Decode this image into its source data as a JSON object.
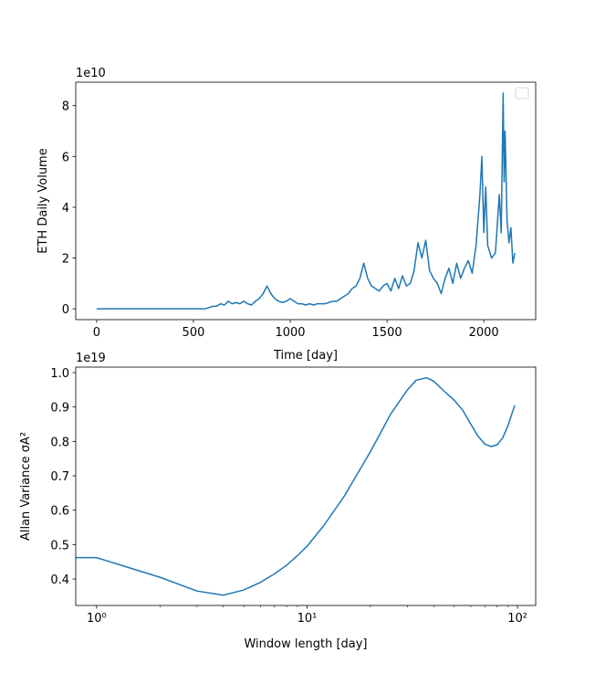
{
  "chart_data": [
    {
      "type": "line",
      "xlabel": "Time [day]",
      "ylabel": "ETH Daily Volume",
      "offset_text": "1e10",
      "xlim": [
        -108,
        2268
      ],
      "xticks": [
        0,
        500,
        1000,
        1500,
        2000
      ],
      "ylim": [
        -0.425,
        8.925
      ],
      "yticks": [
        0,
        2,
        4,
        6,
        8
      ],
      "legend": "upper right",
      "series": [
        {
          "color": "#1f77b4",
          "x": [
            0,
            100,
            200,
            300,
            400,
            500,
            560,
            580,
            600,
            620,
            640,
            660,
            680,
            700,
            720,
            740,
            760,
            780,
            800,
            820,
            840,
            860,
            880,
            900,
            920,
            940,
            960,
            980,
            1000,
            1020,
            1040,
            1060,
            1080,
            1100,
            1120,
            1140,
            1160,
            1180,
            1200,
            1220,
            1240,
            1260,
            1280,
            1300,
            1320,
            1340,
            1360,
            1380,
            1400,
            1420,
            1440,
            1460,
            1480,
            1500,
            1520,
            1540,
            1560,
            1580,
            1600,
            1620,
            1640,
            1660,
            1680,
            1700,
            1720,
            1740,
            1760,
            1780,
            1800,
            1820,
            1840,
            1860,
            1880,
            1900,
            1920,
            1940,
            1960,
            1980,
            1990,
            2000,
            2010,
            2020,
            2040,
            2060,
            2080,
            2090,
            2100,
            2105,
            2110,
            2120,
            2130,
            2140,
            2150,
            2160
          ],
          "values": [
            0,
            0,
            0,
            0,
            0,
            0,
            0,
            0.05,
            0.1,
            0.1,
            0.2,
            0.15,
            0.3,
            0.2,
            0.25,
            0.2,
            0.3,
            0.2,
            0.15,
            0.3,
            0.4,
            0.6,
            0.9,
            0.6,
            0.4,
            0.3,
            0.25,
            0.3,
            0.4,
            0.3,
            0.2,
            0.2,
            0.15,
            0.2,
            0.15,
            0.2,
            0.2,
            0.2,
            0.25,
            0.3,
            0.3,
            0.4,
            0.5,
            0.6,
            0.8,
            0.9,
            1.2,
            1.8,
            1.2,
            0.9,
            0.8,
            0.7,
            0.9,
            1.0,
            0.7,
            1.2,
            0.8,
            1.3,
            0.9,
            1.0,
            1.5,
            2.6,
            2.0,
            2.7,
            1.5,
            1.2,
            1.0,
            0.6,
            1.2,
            1.6,
            1.0,
            1.8,
            1.2,
            1.6,
            1.9,
            1.4,
            2.5,
            4.5,
            6.0,
            3.0,
            4.8,
            2.5,
            2.0,
            2.2,
            4.5,
            3.0,
            8.5,
            5.0,
            7.0,
            3.5,
            2.6,
            3.2,
            1.8,
            2.2
          ]
        }
      ]
    },
    {
      "type": "line",
      "xlabel": "Window length [day]",
      "ylabel": "Allan Variance σA²",
      "offset_text": "1e19",
      "xscale": "log",
      "xlim": [
        0.796,
        122
      ],
      "xticks": [
        {
          "value": 1,
          "label": "10⁰"
        },
        {
          "value": 10,
          "label": "10¹"
        },
        {
          "value": 100,
          "label": "10²"
        }
      ],
      "xminorticks": [
        2,
        3,
        4,
        5,
        6,
        7,
        8,
        9,
        20,
        30,
        40,
        50,
        60,
        70,
        80,
        90
      ],
      "ylim": [
        0.323,
        1.016
      ],
      "yticks": [
        0.4,
        0.5,
        0.6,
        0.7,
        0.8,
        0.9,
        {
          "value": 1,
          "label": "1.0"
        }
      ],
      "series": [
        {
          "color": "#1f77b4",
          "x": [
            0.8,
            1,
            2,
            3,
            4,
            5,
            6,
            7,
            8,
            9,
            10,
            12,
            15,
            20,
            25,
            30,
            33,
            37,
            40,
            45,
            50,
            55,
            60,
            65,
            70,
            75,
            80,
            85,
            90,
            97
          ],
          "values": [
            0.462,
            0.462,
            0.405,
            0.365,
            0.353,
            0.368,
            0.39,
            0.415,
            0.44,
            0.468,
            0.495,
            0.555,
            0.64,
            0.77,
            0.88,
            0.95,
            0.978,
            0.985,
            0.975,
            0.945,
            0.92,
            0.89,
            0.85,
            0.815,
            0.792,
            0.785,
            0.79,
            0.81,
            0.845,
            0.905
          ]
        }
      ]
    }
  ]
}
